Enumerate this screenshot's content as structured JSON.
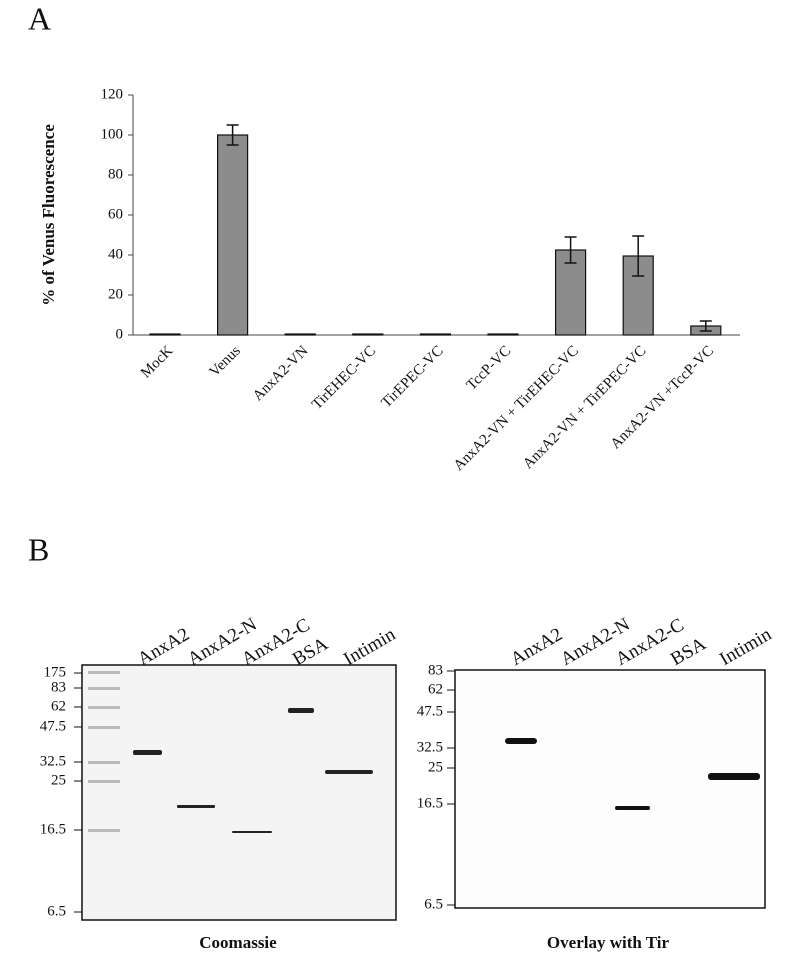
{
  "panel_a": "A",
  "panel_b": "B",
  "chart_data": {
    "type": "bar",
    "y_label": "% of Venus Fluorescence",
    "categories": [
      "MocK",
      "Venus",
      "AnxA2-VN",
      "TirEHEC-VC",
      "TirEPEC-VC",
      "TccP-VC",
      "AnxA2-VN + TirEHEC-VC",
      "AnxA2-VN + TirEPEC-VC",
      "AnxA2-VN +TccP-VC"
    ],
    "values": [
      0.5,
      100,
      0.5,
      0.5,
      0.5,
      0.5,
      42.5,
      39.5,
      4.5
    ],
    "errors": [
      0,
      5,
      0,
      0,
      0,
      0,
      6.5,
      10,
      2.5
    ],
    "color": "#8c8c8c",
    "ylim": [
      0,
      120
    ],
    "yticks": [
      0,
      20,
      40,
      60,
      80,
      100,
      120
    ]
  },
  "gels": [
    {
      "markers": [
        "175",
        "83",
        "62",
        "47.5",
        "32.5",
        "25",
        "16.5",
        "6.5"
      ],
      "lanes": [
        "AnxA2",
        "AnxA2-N",
        "AnxA2-C",
        "BSA",
        "Intimin"
      ],
      "caption": "Coomassie"
    },
    {
      "markers": [
        "83",
        "62",
        "47.5",
        "32.5",
        "25",
        "16.5",
        "6.5"
      ],
      "lanes": [
        "AnxA2",
        "AnxA2-N",
        "AnxA2-C",
        "BSA",
        "Intimin"
      ],
      "caption": "Overlay with Tir"
    }
  ]
}
